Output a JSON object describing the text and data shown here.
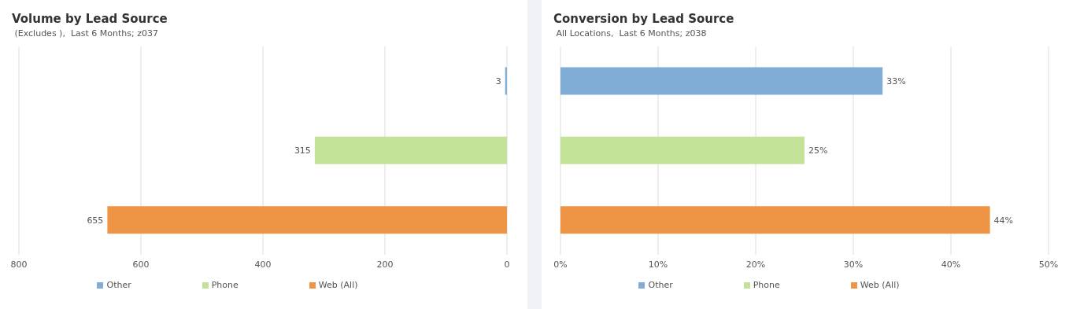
{
  "chart_data": [
    {
      "type": "bar",
      "orientation": "horizontal",
      "stacked": true,
      "title": "Volume by Lead Source",
      "subtitle": " (Excludes ),  Last 6 Months; z037",
      "categories": [
        null,
        null,
        null
      ],
      "series": [
        {
          "name": "Other",
          "color": "#7fadd6",
          "values": [
            3,
            null,
            null
          ]
        },
        {
          "name": "Phone",
          "color": "#c2e398",
          "values": [
            null,
            315,
            null
          ]
        },
        {
          "name": "Web (All)",
          "color": "#ed9545",
          "values": [
            null,
            null,
            655
          ]
        }
      ],
      "xlim": [
        800,
        0
      ],
      "xticks": [
        800,
        600,
        400,
        200,
        0
      ],
      "grid": "x",
      "legend": "bottom",
      "tick_labels": "x",
      "data_labels": true
    },
    {
      "type": "bar",
      "orientation": "horizontal",
      "stacked": true,
      "title": "Conversion by Lead Source",
      "subtitle": " All Locations,  Last 6 Months; z038",
      "categories": [
        null,
        null,
        null
      ],
      "series": [
        {
          "name": "Other",
          "color": "#7fadd6",
          "values": [
            33,
            null,
            null
          ],
          "value_labels": [
            "33%",
            null,
            null
          ]
        },
        {
          "name": "Phone",
          "color": "#c2e398",
          "values": [
            null,
            25,
            null
          ],
          "value_labels": [
            null,
            "25%",
            null
          ]
        },
        {
          "name": "Web (All)",
          "color": "#ed9545",
          "values": [
            null,
            null,
            44
          ],
          "value_labels": [
            null,
            null,
            "44%"
          ]
        }
      ],
      "xlim": [
        0,
        50
      ],
      "xticks": [
        {
          "value": 0,
          "label": "0%"
        },
        {
          "value": 10,
          "label": "10%"
        },
        {
          "value": 20,
          "label": "20%"
        },
        {
          "value": 30,
          "label": "30%"
        },
        {
          "value": 40,
          "label": "40%"
        },
        {
          "value": 50,
          "label": "50%"
        }
      ],
      "grid": "x",
      "legend": "bottom",
      "tick_labels": "x"
    }
  ]
}
